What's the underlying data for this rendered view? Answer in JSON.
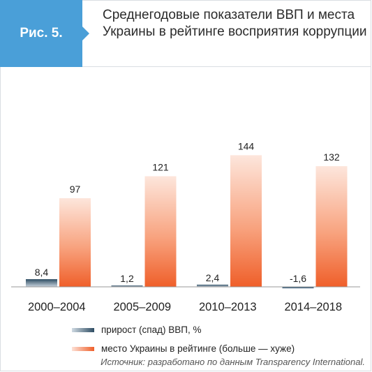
{
  "figure": {
    "label": "Рис. 5.",
    "title": "Среднегодовые показатели ВВП и места Украины в рейтинге восприятия коррупции",
    "source": "Источник: разработано по данным Transparency International."
  },
  "colors": {
    "badge": "#4a9fd8",
    "gdp_dark": "#2e4d63",
    "gdp_light": "#dde5ec",
    "rank_dark": "#ef5f2a",
    "rank_light": "#fde6dc"
  },
  "chart_data": {
    "type": "bar",
    "categories": [
      "2000–2004",
      "2005–2009",
      "2010–2013",
      "2014–2018"
    ],
    "series": [
      {
        "name": "прирост (спад) ВВП, %",
        "values": [
          8.4,
          1.2,
          2.4,
          -1.6
        ],
        "labels": [
          "8,4",
          "1,2",
          "2,4",
          "-1,6"
        ]
      },
      {
        "name": "место Украины в рейтинге (больше — хуже)",
        "values": [
          97,
          121,
          144,
          132
        ],
        "labels": [
          "97",
          "121",
          "144",
          "132"
        ]
      }
    ],
    "ylim": [
      0,
      150
    ],
    "legend_position": "bottom-left",
    "grid": false
  }
}
